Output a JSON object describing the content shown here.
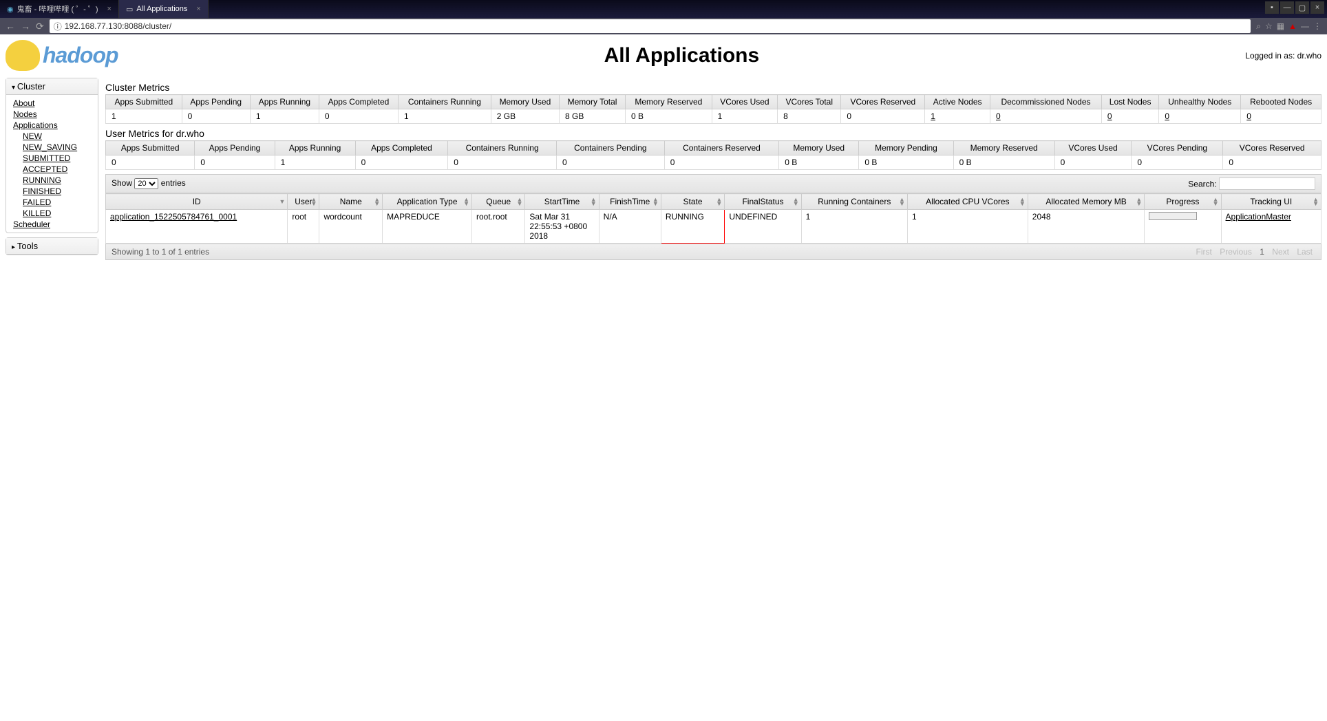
{
  "browser": {
    "tabs": [
      {
        "title": "鬼畜 - 哔哩哔哩 ( ゜- ゜)",
        "active": false
      },
      {
        "title": "All Applications",
        "active": true
      }
    ],
    "url": "192.168.77.130:8088/cluster/"
  },
  "header": {
    "logo_text": "hadoop",
    "page_title": "All Applications",
    "login_info": "Logged in as: dr.who"
  },
  "sidebar": {
    "cluster": {
      "title": "Cluster",
      "links": [
        "About",
        "Nodes",
        "Applications"
      ],
      "sub_links": [
        "NEW",
        "NEW_SAVING",
        "SUBMITTED",
        "ACCEPTED",
        "RUNNING",
        "FINISHED",
        "FAILED",
        "KILLED"
      ],
      "scheduler": "Scheduler"
    },
    "tools": {
      "title": "Tools"
    }
  },
  "cluster_metrics": {
    "title": "Cluster Metrics",
    "headers": [
      "Apps Submitted",
      "Apps Pending",
      "Apps Running",
      "Apps Completed",
      "Containers Running",
      "Memory Used",
      "Memory Total",
      "Memory Reserved",
      "VCores Used",
      "VCores Total",
      "VCores Reserved",
      "Active Nodes",
      "Decommissioned Nodes",
      "Lost Nodes",
      "Unhealthy Nodes",
      "Rebooted Nodes"
    ],
    "values": [
      "1",
      "0",
      "1",
      "0",
      "1",
      "2 GB",
      "8 GB",
      "0 B",
      "1",
      "8",
      "0",
      "1",
      "0",
      "0",
      "0",
      "0"
    ],
    "linked": [
      false,
      false,
      false,
      false,
      false,
      false,
      false,
      false,
      false,
      false,
      false,
      true,
      true,
      true,
      true,
      true
    ]
  },
  "user_metrics": {
    "title": "User Metrics for dr.who",
    "headers": [
      "Apps Submitted",
      "Apps Pending",
      "Apps Running",
      "Apps Completed",
      "Containers Running",
      "Containers Pending",
      "Containers Reserved",
      "Memory Used",
      "Memory Pending",
      "Memory Reserved",
      "VCores Used",
      "VCores Pending",
      "VCores Reserved"
    ],
    "values": [
      "0",
      "0",
      "1",
      "0",
      "0",
      "0",
      "0",
      "0 B",
      "0 B",
      "0 B",
      "0",
      "0",
      "0"
    ]
  },
  "datatable": {
    "show_label_pre": "Show",
    "show_value": "20",
    "show_label_post": "entries",
    "search_label": "Search:",
    "headers": [
      "ID",
      "User",
      "Name",
      "Application Type",
      "Queue",
      "StartTime",
      "FinishTime",
      "State",
      "FinalStatus",
      "Running Containers",
      "Allocated CPU VCores",
      "Allocated Memory MB",
      "Progress",
      "Tracking UI"
    ],
    "row": {
      "id": "application_1522505784761_0001",
      "user": "root",
      "name": "wordcount",
      "app_type": "MAPREDUCE",
      "queue": "root.root",
      "start": "Sat Mar 31 22:55:53 +0800 2018",
      "finish": "N/A",
      "state": "RUNNING",
      "final": "UNDEFINED",
      "containers": "1",
      "vcores": "1",
      "mem": "2048",
      "tracking": "ApplicationMaster"
    },
    "footer_info": "Showing 1 to 1 of 1 entries",
    "pager": [
      "First",
      "Previous",
      "1",
      "Next",
      "Last"
    ]
  }
}
